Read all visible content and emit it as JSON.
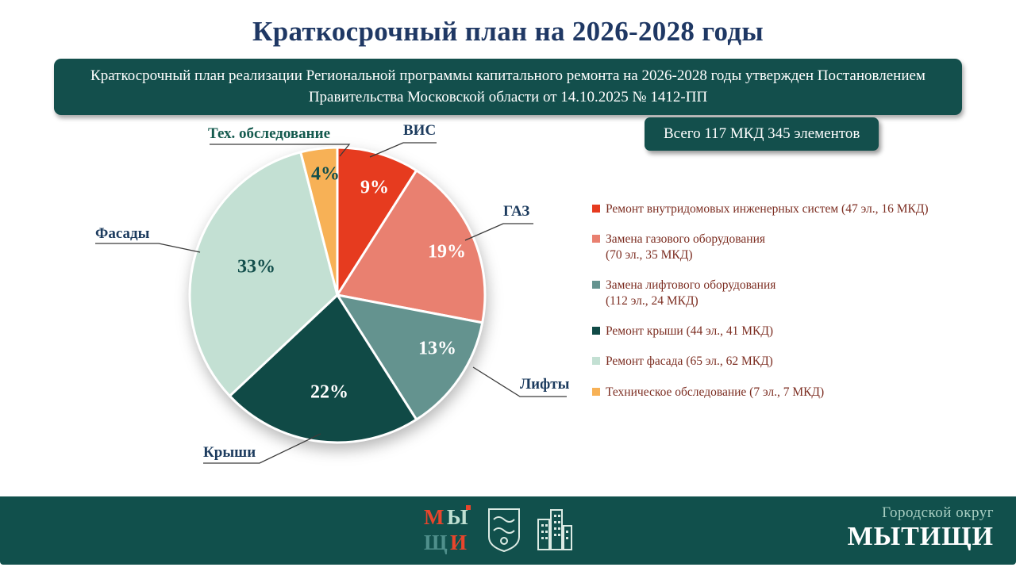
{
  "title": "Краткосрочный план на 2026-2028 годы",
  "banner": {
    "line1": "Краткосрочный план реализации Региональной программы капитального ремонта на 2026-2028  годы утвержден Постановлением",
    "line2": "Правительства Московской области от 14.10.2025  № 1412-ПП"
  },
  "total_badge": "Всего 117 МКД 345 элементов",
  "chart_data": {
    "type": "pie",
    "title": "Краткосрочный план на 2026-2028 годы",
    "unit": "percent",
    "start_angle": "12 o'clock, clockwise",
    "total_label": "Всего 117 МКД 345 элементов",
    "slices": [
      {
        "label": "ВИС",
        "value": 9,
        "pct_label": "9%",
        "color": "#e63b1f",
        "legend": "Ремонт внутридомовых инженерных систем (47 эл., 16 МКД)"
      },
      {
        "label": "ГАЗ",
        "value": 19,
        "pct_label": "19%",
        "color": "#e98070",
        "legend": "Замена газового оборудования\n(70 эл., 35 МКД)"
      },
      {
        "label": "Лифты",
        "value": 13,
        "pct_label": "13%",
        "color": "#64938f",
        "legend": "Замена лифтового оборудования\n(112 эл., 24 МКД)"
      },
      {
        "label": "Крыши",
        "value": 22,
        "pct_label": "22%",
        "color": "#104a46",
        "legend": "Ремонт крыши  (44 эл., 41 МКД)"
      },
      {
        "label": "Фасады",
        "value": 33,
        "pct_label": "33%",
        "color": "#c3e0d3",
        "legend": "Ремонт фасада  (65 эл., 62 МКД)"
      },
      {
        "label": "Тех. обследование",
        "value": 4,
        "pct_label": "4%",
        "color": "#f7b156",
        "legend": "Техническое  обследование (7 эл., 7 МКД)"
      }
    ],
    "legend_position": "right"
  },
  "footer": {
    "district_label": "Городской округ",
    "city_name": "МЫТИЩИ"
  },
  "colors": {
    "title_text": "#1f3864",
    "banner_bg": "#134f4c",
    "badge_bg": "#134f4c",
    "legend_text": "#7c2d21",
    "footer_bg": "#11504c"
  }
}
